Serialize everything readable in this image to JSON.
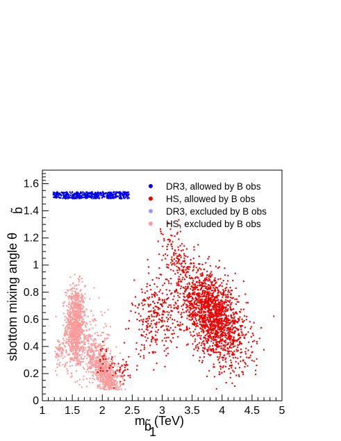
{
  "chart_data": {
    "type": "scatter",
    "xlabel": "m",
    "xlabel_sub": "b̃",
    "xlabel_subsub": "1",
    "xlabel_unit": " (TeV)",
    "ylabel": "sbottom mixing angle θ",
    "ylabel_sub": "b̃",
    "xlim": [
      1,
      5
    ],
    "ylim": [
      0,
      1.7
    ],
    "xticks": [
      1,
      1.5,
      2,
      2.5,
      3,
      3.5,
      4,
      4.5,
      5
    ],
    "xtick_labels": [
      "1",
      "1.5",
      "2",
      "2.5",
      "3",
      "3.5",
      "4",
      "4.5",
      "5"
    ],
    "yticks": [
      0,
      0.2,
      0.4,
      0.6,
      0.8,
      1,
      1.2,
      1.4,
      1.6
    ],
    "ytick_labels": [
      "0",
      "0.2",
      "0.4",
      "0.6",
      "0.8",
      "1",
      "1.2",
      "1.4",
      "1.6"
    ],
    "grid": false,
    "legend_position": "top-right",
    "series": [
      {
        "name": "DR3, allowed by B obs",
        "color": "#0000ee",
        "clusters": [
          {
            "x_range": [
              1.18,
              2.45
            ],
            "y_range": [
              1.49,
              1.54
            ],
            "n": 500,
            "shape": "uniform"
          }
        ]
      },
      {
        "name": "HS, allowed by B obs",
        "color": "#ee0000",
        "clusters": [
          {
            "cx": 3.85,
            "cy": 0.62,
            "sx": 0.28,
            "sy": 0.15,
            "n": 1700,
            "shape": "gauss",
            "tilt": -0.32
          },
          {
            "cx": 3.3,
            "cy": 1.0,
            "sx": 0.15,
            "sy": 0.12,
            "n": 150,
            "shape": "gauss",
            "tilt": -0.4
          },
          {
            "cx": 2.9,
            "cy": 0.6,
            "sx": 0.2,
            "sy": 0.14,
            "n": 280,
            "shape": "gauss",
            "tilt": 0
          },
          {
            "cx": 2.35,
            "cy": 0.22,
            "sx": 0.12,
            "sy": 0.05,
            "n": 40,
            "shape": "gauss",
            "tilt": 0
          },
          {
            "cx": 2.05,
            "cy": 0.3,
            "sx": 0.07,
            "sy": 0.05,
            "n": 25,
            "shape": "gauss",
            "tilt": 0
          }
        ]
      },
      {
        "name": "DR3, excluded by B obs",
        "color": "#9999ff",
        "clusters": [
          {
            "x_range": [
              1.35,
              2.0
            ],
            "y_range": [
              1.5,
              1.53
            ],
            "n": 60,
            "shape": "uniform"
          }
        ]
      },
      {
        "name": "HS, excluded by B obs",
        "color": "#ff9999",
        "clusters": [
          {
            "cx": 1.55,
            "cy": 0.55,
            "sx": 0.08,
            "sy": 0.15,
            "n": 850,
            "shape": "gauss",
            "tilt": 0
          },
          {
            "cx": 2.05,
            "cy": 0.2,
            "sx": 0.15,
            "sy": 0.08,
            "n": 700,
            "shape": "gauss",
            "tilt": -0.5
          },
          {
            "cx": 1.3,
            "cy": 0.35,
            "sx": 0.05,
            "sy": 0.06,
            "n": 60,
            "shape": "gauss",
            "tilt": 0
          },
          {
            "cx": 1.85,
            "cy": 0.4,
            "sx": 0.15,
            "sy": 0.15,
            "n": 180,
            "shape": "gauss",
            "tilt": 0
          }
        ]
      }
    ]
  }
}
